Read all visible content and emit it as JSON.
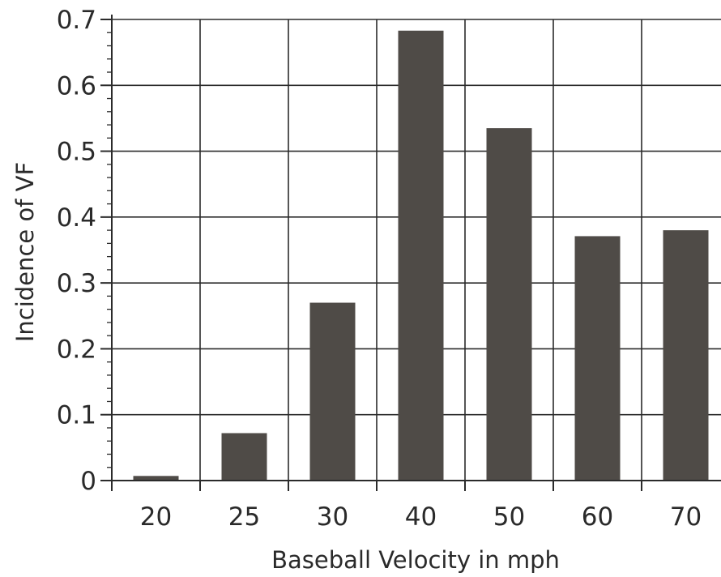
{
  "chart_data": {
    "type": "bar",
    "categories": [
      "20",
      "25",
      "30",
      "40",
      "50",
      "60",
      "70"
    ],
    "values": [
      0.007,
      0.072,
      0.27,
      0.683,
      0.535,
      0.371,
      0.38
    ],
    "xlabel": "Baseball Velocity in mph",
    "ylabel": "Incidence of VF",
    "ylim": [
      0,
      0.7
    ],
    "yticks": [
      0,
      0.1,
      0.2,
      0.3,
      0.4,
      0.5,
      0.6,
      0.7
    ],
    "ytick_labels": [
      "0",
      "0.1",
      "0.2",
      "0.3",
      "0.4",
      "0.5",
      "0.6",
      "0.7"
    ],
    "grid": true,
    "bar_color": "#4f4b47",
    "grid_color": "#2b2b2b"
  }
}
